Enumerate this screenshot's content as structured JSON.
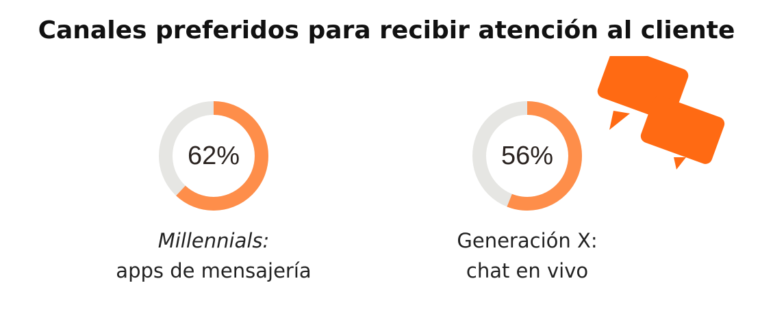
{
  "title": "Canales preferidos para recibir atención al cliente",
  "colors": {
    "accent": "#fe8e4a",
    "track": "#e6e6e3",
    "icon": "#ff6a13",
    "text": "#222222"
  },
  "icon": "chat-bubbles-icon",
  "chart_data": [
    {
      "type": "pie",
      "variant": "donut",
      "value": 62,
      "value_label": "62%",
      "max": 100,
      "label_line1": "Millennials:",
      "label_line2": "apps de mensajería"
    },
    {
      "type": "pie",
      "variant": "donut",
      "value": 56,
      "value_label": "56%",
      "max": 100,
      "label_line1": "Generación X:",
      "label_line2": "chat en vivo"
    }
  ]
}
